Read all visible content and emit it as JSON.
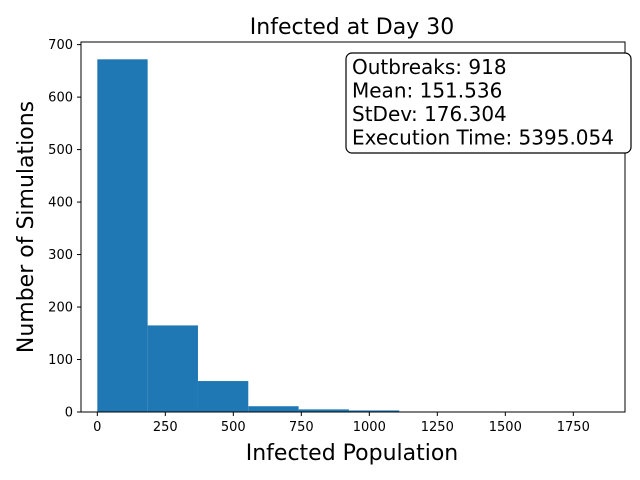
{
  "chart_data": {
    "type": "bar",
    "title": "Infected at Day 30",
    "xlabel": "Infected Population",
    "ylabel": "Number of Simulations",
    "xlim": [
      -60,
      1940
    ],
    "ylim": [
      0,
      705
    ],
    "xticks": [
      0,
      250,
      500,
      750,
      1000,
      1250,
      1500,
      1750
    ],
    "yticks": [
      0,
      100,
      200,
      300,
      400,
      500,
      600,
      700
    ],
    "bins": [
      {
        "x0": 0,
        "x1": 185,
        "value": 672
      },
      {
        "x0": 185,
        "x1": 370,
        "value": 165
      },
      {
        "x0": 370,
        "x1": 555,
        "value": 59
      },
      {
        "x0": 555,
        "x1": 740,
        "value": 11
      },
      {
        "x0": 740,
        "x1": 925,
        "value": 5
      },
      {
        "x0": 925,
        "x1": 1110,
        "value": 3
      },
      {
        "x0": 1110,
        "x1": 1295,
        "value": 1
      },
      {
        "x0": 1295,
        "x1": 1480,
        "value": 1
      },
      {
        "x0": 1480,
        "x1": 1665,
        "value": 0
      },
      {
        "x0": 1665,
        "x1": 1850,
        "value": 1
      }
    ],
    "bar_color": "#1f77b4",
    "grid": false,
    "annotation_lines": [
      "Outbreaks: 918",
      "Mean: 151.536",
      "StDev: 176.304",
      "Execution Time: 5395.054"
    ]
  }
}
